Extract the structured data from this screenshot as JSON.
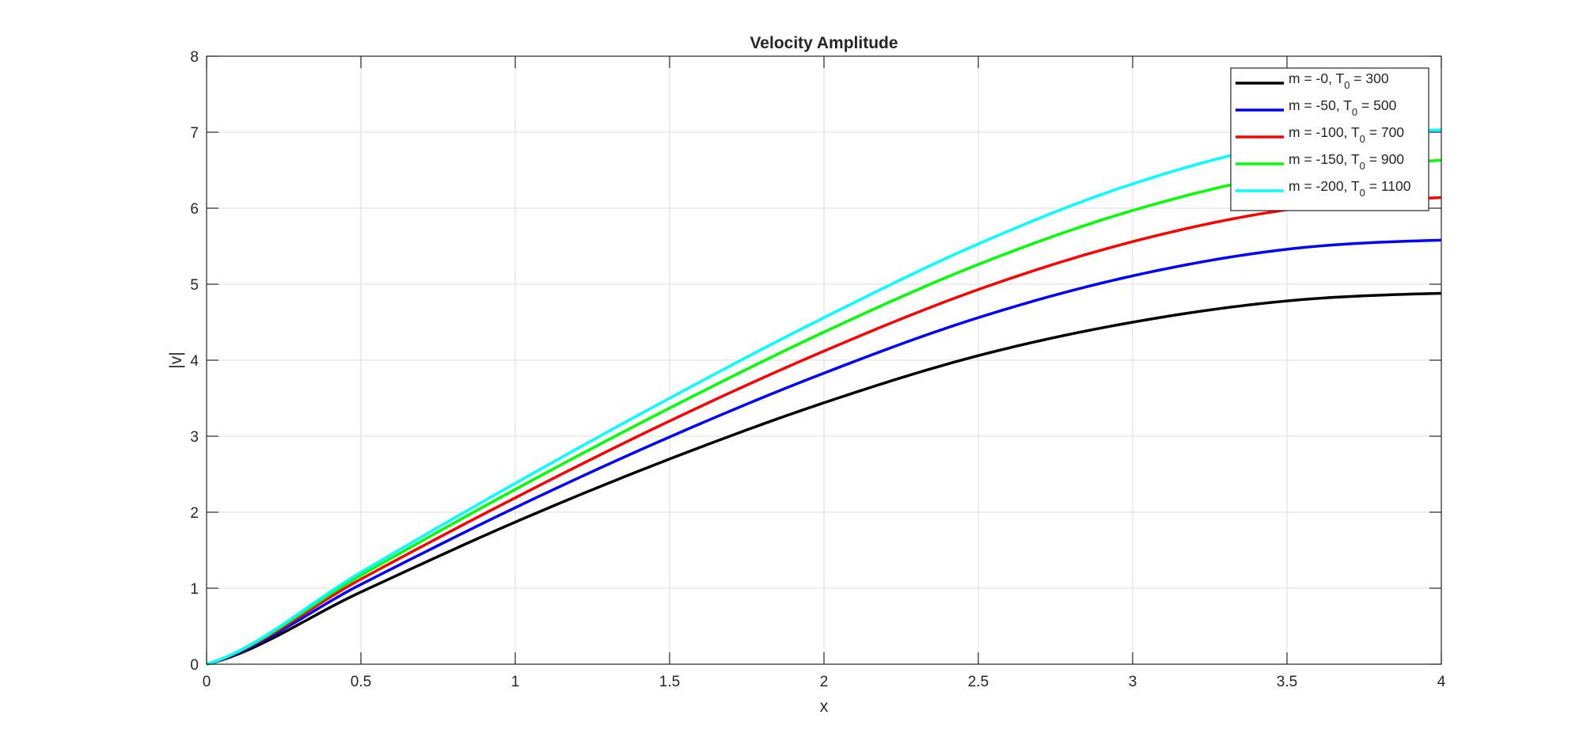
{
  "chart_data": {
    "type": "line",
    "title": "Velocity Amplitude",
    "xlabel": "x",
    "ylabel": "|v|",
    "xlim": [
      0,
      4
    ],
    "ylim": [
      0,
      8
    ],
    "xticks": [
      "0",
      "0.5",
      "1",
      "1.5",
      "2",
      "2.5",
      "3",
      "3.5",
      "4"
    ],
    "yticks": [
      "0",
      "1",
      "2",
      "3",
      "4",
      "5",
      "6",
      "7",
      "8"
    ],
    "grid": true,
    "legend_position": "top-right",
    "x": [
      0,
      0.5,
      1,
      1.5,
      2,
      2.5,
      3,
      3.5,
      4
    ],
    "series": [
      {
        "name_main": "m = -0, T",
        "name_sub": "0",
        "name_tail": " = 300",
        "color": "#000000",
        "values": [
          0,
          0.95,
          1.87,
          2.7,
          3.44,
          4.06,
          4.5,
          4.78,
          4.88
        ]
      },
      {
        "name_main": "m = -50, T",
        "name_sub": "0",
        "name_tail": " = 500",
        "color": "#0000ff",
        "values": [
          0,
          1.05,
          2.06,
          2.99,
          3.83,
          4.56,
          5.11,
          5.46,
          5.58
        ]
      },
      {
        "name_main": "m = -100, T",
        "name_sub": "0",
        "name_tail": " = 700",
        "color": "#ff0000",
        "values": [
          0,
          1.12,
          2.19,
          3.2,
          4.12,
          4.93,
          5.56,
          5.98,
          6.14
        ]
      },
      {
        "name_main": "m = -150, T",
        "name_sub": "0",
        "name_tail": " = 900",
        "color": "#00ff00",
        "values": [
          0,
          1.17,
          2.3,
          3.37,
          4.37,
          5.26,
          5.97,
          6.45,
          6.63
        ]
      },
      {
        "name_main": "m = -200, T",
        "name_sub": "0",
        "name_tail": " = 1100",
        "color": "#00ffff",
        "values": [
          0,
          1.21,
          2.38,
          3.5,
          4.56,
          5.53,
          6.32,
          6.85,
          7.03
        ]
      }
    ]
  }
}
